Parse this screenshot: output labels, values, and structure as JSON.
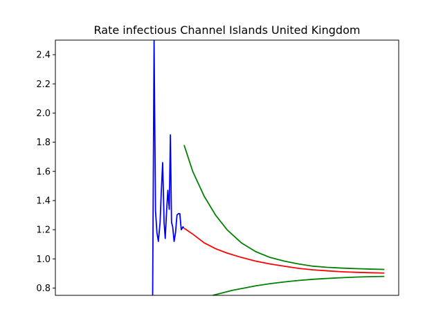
{
  "chart_data": {
    "type": "line",
    "title": "Rate infectious Channel Islands United Kingdom",
    "xlabel": "",
    "ylabel": "",
    "xlim": [
      0,
      120
    ],
    "ylim": [
      0.75,
      2.5
    ],
    "yticks": [
      0.8,
      1.0,
      1.2,
      1.4,
      1.6,
      1.8,
      2.0,
      2.2,
      2.4
    ],
    "ytick_labels": [
      "0.8",
      "1.0",
      "1.2",
      "1.4",
      "1.6",
      "1.8",
      "2.0",
      "2.2",
      "2.4"
    ],
    "xticks_shown": false,
    "grid": false,
    "legend": "none",
    "series": [
      {
        "role": "observed",
        "color": "#0000ff",
        "x": [
          34,
          34.5,
          35,
          35.5,
          36,
          36.6,
          37,
          37.5,
          38,
          38.4,
          38.8,
          39.3,
          39.8,
          40.2,
          40.6,
          41,
          41.5,
          42,
          42.5,
          43,
          43.5,
          44,
          44.6,
          44.9
        ],
        "y": [
          0.75,
          2.5,
          1.33,
          1.18,
          1.12,
          1.25,
          1.45,
          1.66,
          1.25,
          1.14,
          1.3,
          1.47,
          1.34,
          1.85,
          1.25,
          1.22,
          1.12,
          1.18,
          1.3,
          1.31,
          1.31,
          1.2,
          1.22,
          1.21
        ]
      },
      {
        "role": "projection",
        "color": "#ff0000",
        "x": [
          45,
          48,
          52,
          56,
          60,
          65,
          70,
          75,
          80,
          85,
          90,
          95,
          100,
          105,
          110,
          115
        ],
        "y": [
          1.21,
          1.17,
          1.11,
          1.07,
          1.04,
          1.01,
          0.985,
          0.965,
          0.95,
          0.935,
          0.925,
          0.918,
          0.912,
          0.908,
          0.905,
          0.903
        ]
      },
      {
        "role": "upper-bound",
        "color": "#008000",
        "x": [
          45,
          48,
          52,
          56,
          60,
          65,
          70,
          75,
          80,
          85,
          90,
          95,
          100,
          105,
          110,
          115
        ],
        "y": [
          1.78,
          1.6,
          1.43,
          1.3,
          1.2,
          1.11,
          1.05,
          1.01,
          0.985,
          0.965,
          0.95,
          0.942,
          0.937,
          0.933,
          0.93,
          0.928
        ]
      },
      {
        "role": "lower-bound",
        "color": "#008000",
        "x": [
          55,
          58,
          62,
          66,
          70,
          75,
          80,
          85,
          90,
          95,
          100,
          105,
          110,
          115
        ],
        "y": [
          0.75,
          0.765,
          0.785,
          0.8,
          0.815,
          0.83,
          0.842,
          0.852,
          0.86,
          0.866,
          0.871,
          0.875,
          0.878,
          0.88
        ]
      }
    ]
  }
}
